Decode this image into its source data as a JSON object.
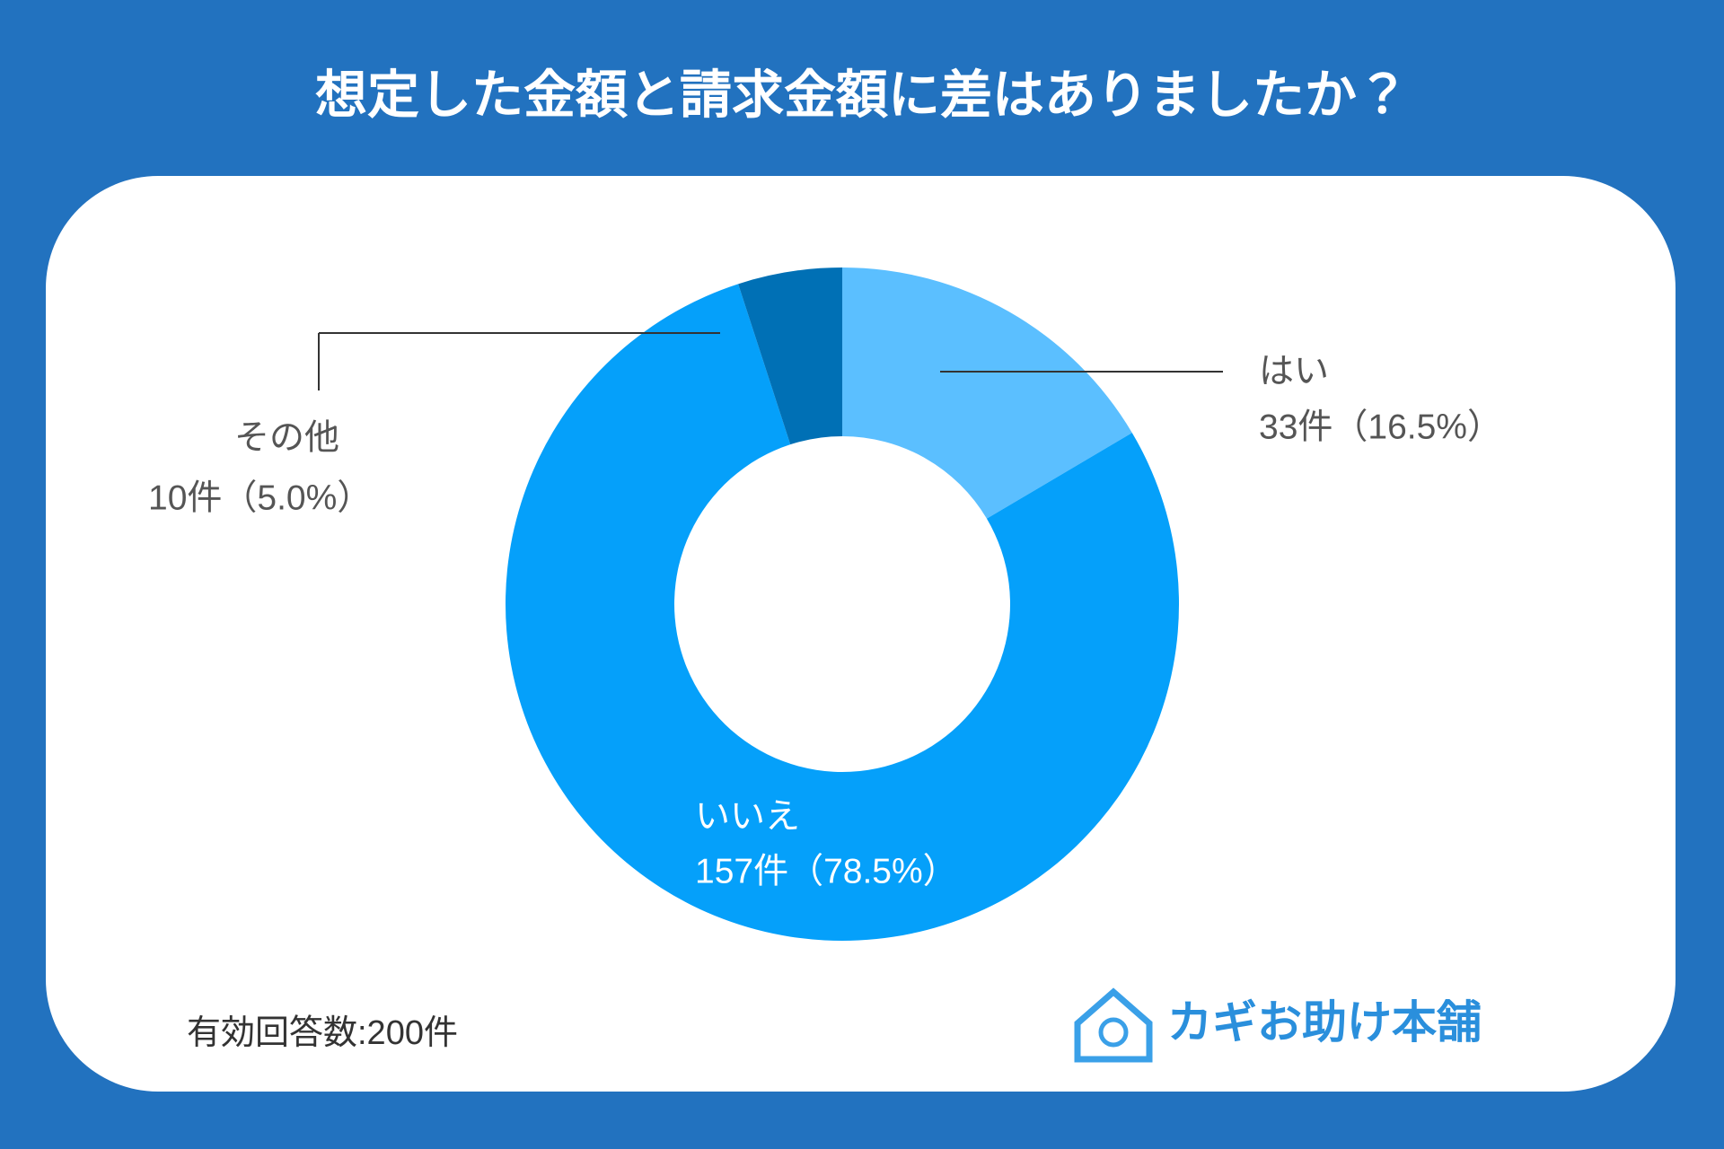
{
  "chart_data": {
    "type": "donut",
    "title": "想定した金額と請求金額に差はありましたか？",
    "categories": [
      "はい",
      "いいえ",
      "その他"
    ],
    "values": [
      33,
      157,
      10
    ],
    "value_labels": [
      "33件（16.5%）",
      "157件（78.5%）",
      "10件（5.0%）"
    ],
    "colors": [
      "#5bbfff",
      "#05a0fa",
      "#0070b5"
    ],
    "note": "有効回答数:200件",
    "brand": "カギお助け本舗"
  }
}
